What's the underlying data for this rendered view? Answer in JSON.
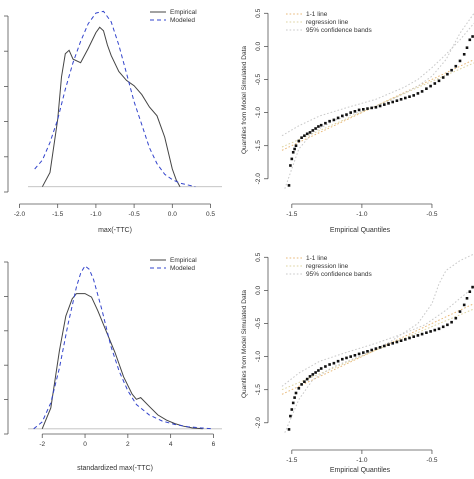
{
  "chart_data": [
    {
      "type": "line",
      "panel": "top-left",
      "xlabel": "max(-TTC)",
      "ylabel": "",
      "xlim": [
        -2.15,
        0.65
      ],
      "ylim": [
        -0.03,
        1.02
      ],
      "x_ticks": [
        -2.0,
        -1.5,
        -1.0,
        -0.5,
        0.0,
        0.5
      ],
      "x_tick_labels": [
        "-2.0",
        "-1.5",
        "-1.0",
        "-0.5",
        "0.0",
        "0.5"
      ],
      "legend": {
        "position": "top-right",
        "entries": [
          "Empirical",
          "Modeled"
        ]
      },
      "series": [
        {
          "name": "Empirical",
          "color": "#444444",
          "dash": "solid",
          "x": [
            -1.7,
            -1.6,
            -1.5,
            -1.45,
            -1.4,
            -1.35,
            -1.3,
            -1.2,
            -1.1,
            -1.0,
            -0.95,
            -0.9,
            -0.85,
            -0.8,
            -0.7,
            -0.6,
            -0.5,
            -0.4,
            -0.3,
            -0.2,
            -0.1,
            0.0,
            0.05,
            0.1
          ],
          "y": [
            0.0,
            0.08,
            0.38,
            0.62,
            0.75,
            0.77,
            0.72,
            0.7,
            0.78,
            0.87,
            0.9,
            0.88,
            0.8,
            0.74,
            0.65,
            0.6,
            0.57,
            0.52,
            0.45,
            0.4,
            0.28,
            0.1,
            0.04,
            0.0
          ]
        },
        {
          "name": "Modeled",
          "color": "#3344cc",
          "dash": "dashed",
          "x": [
            -1.8,
            -1.7,
            -1.6,
            -1.5,
            -1.4,
            -1.3,
            -1.2,
            -1.1,
            -1.0,
            -0.9,
            -0.8,
            -0.7,
            -0.6,
            -0.5,
            -0.4,
            -0.3,
            -0.2,
            -0.1,
            0.0,
            0.1,
            0.2,
            0.3
          ],
          "y": [
            0.1,
            0.15,
            0.25,
            0.38,
            0.55,
            0.7,
            0.82,
            0.92,
            0.98,
            0.99,
            0.93,
            0.8,
            0.64,
            0.48,
            0.35,
            0.22,
            0.13,
            0.07,
            0.04,
            0.02,
            0.01,
            0.0
          ]
        }
      ]
    },
    {
      "type": "scatter",
      "panel": "top-right",
      "xlabel": "Empirical Quantiles",
      "ylabel": "Quantiles from Model Simulated Data",
      "xlim": [
        -1.57,
        -0.2
      ],
      "ylim": [
        -2.2,
        0.58
      ],
      "x_ticks": [
        -1.5,
        -1.0,
        -0.5
      ],
      "x_tick_labels": [
        "-1.5",
        "-1.0",
        "-0.5"
      ],
      "y_ticks": [
        -2.0,
        -1.5,
        -1.0,
        -0.5,
        0.0,
        0.5
      ],
      "y_tick_labels": [
        "-2.0",
        "-1.5",
        "-1.0",
        "-0.5",
        "0.0",
        "0.5"
      ],
      "legend": {
        "position": "top-left",
        "entries": [
          "1-1 line",
          "regression line",
          "95% confidence bands"
        ]
      },
      "lines": [
        {
          "name": "1-1 line",
          "color": "#e8b878",
          "dash": "dotted",
          "x": [
            -1.57,
            -0.2
          ],
          "y": [
            -1.57,
            -0.2
          ]
        },
        {
          "name": "regression line",
          "color": "#ddd3a0",
          "dash": "dotted",
          "x": [
            -1.57,
            -0.2
          ],
          "y": [
            -1.52,
            -0.25
          ]
        },
        {
          "name": "95% confidence bands",
          "color": "#c8c8c8",
          "dash": "dotted",
          "x": [
            -1.55,
            -1.45,
            -1.35,
            -1.2,
            -1.0,
            -0.8,
            -0.6,
            -0.5,
            -0.4,
            -0.3,
            -0.2
          ],
          "y": [
            -2.15,
            -1.55,
            -1.3,
            -1.12,
            -0.98,
            -0.82,
            -0.6,
            -0.45,
            -0.2,
            0.2,
            0.5
          ]
        },
        {
          "color": "#c8c8c8",
          "dash": "dotted",
          "x": [
            -1.57,
            -1.45,
            -1.3,
            -1.1,
            -0.9,
            -0.7,
            -0.6,
            -0.5,
            -0.4,
            -0.3,
            -0.2
          ],
          "y": [
            -1.35,
            -1.2,
            -1.05,
            -0.92,
            -0.8,
            -0.62,
            -0.5,
            -0.32,
            -0.12,
            0.1,
            0.35
          ]
        }
      ],
      "points": {
        "x": [
          -1.52,
          -1.51,
          -1.5,
          -1.49,
          -1.48,
          -1.47,
          -1.45,
          -1.43,
          -1.41,
          -1.39,
          -1.37,
          -1.35,
          -1.33,
          -1.31,
          -1.29,
          -1.26,
          -1.23,
          -1.2,
          -1.17,
          -1.14,
          -1.11,
          -1.08,
          -1.05,
          -1.02,
          -0.99,
          -0.96,
          -0.93,
          -0.9,
          -0.87,
          -0.84,
          -0.81,
          -0.78,
          -0.75,
          -0.72,
          -0.69,
          -0.66,
          -0.63,
          -0.6,
          -0.57,
          -0.54,
          -0.51,
          -0.48,
          -0.45,
          -0.42,
          -0.39,
          -0.36,
          -0.33,
          -0.3,
          -0.27,
          -0.25,
          -0.23,
          -0.21
        ],
        "y": [
          -2.1,
          -1.8,
          -1.7,
          -1.6,
          -1.55,
          -1.5,
          -1.43,
          -1.38,
          -1.35,
          -1.32,
          -1.3,
          -1.27,
          -1.24,
          -1.21,
          -1.19,
          -1.16,
          -1.13,
          -1.11,
          -1.08,
          -1.05,
          -1.03,
          -1.0,
          -0.98,
          -0.96,
          -0.95,
          -0.94,
          -0.93,
          -0.92,
          -0.9,
          -0.88,
          -0.86,
          -0.84,
          -0.82,
          -0.8,
          -0.78,
          -0.76,
          -0.74,
          -0.71,
          -0.68,
          -0.64,
          -0.6,
          -0.56,
          -0.52,
          -0.47,
          -0.42,
          -0.36,
          -0.3,
          -0.22,
          -0.12,
          -0.02,
          0.1,
          0.15
        ]
      }
    },
    {
      "type": "line",
      "panel": "bottom-left",
      "xlabel": "standardized max(-TTC)",
      "ylabel": "",
      "xlim": [
        -3.6,
        6.4
      ],
      "ylim": [
        -0.03,
        1.02
      ],
      "x_ticks": [
        -2,
        0,
        2,
        4,
        6
      ],
      "x_tick_labels": [
        "-2",
        "0",
        "2",
        "4",
        "6"
      ],
      "legend": {
        "position": "top-right",
        "entries": [
          "Empirical",
          "Modeled"
        ]
      },
      "series": [
        {
          "name": "Empirical",
          "color": "#444444",
          "dash": "solid",
          "x": [
            -2.0,
            -1.6,
            -1.2,
            -0.9,
            -0.6,
            -0.4,
            0.0,
            0.3,
            0.6,
            1.0,
            1.4,
            1.8,
            2.2,
            2.4,
            2.6,
            3.0,
            3.4,
            3.8,
            4.2,
            4.6,
            5.0,
            5.5
          ],
          "y": [
            0.0,
            0.12,
            0.45,
            0.65,
            0.75,
            0.78,
            0.78,
            0.76,
            0.68,
            0.56,
            0.44,
            0.3,
            0.2,
            0.17,
            0.18,
            0.13,
            0.08,
            0.05,
            0.03,
            0.015,
            0.005,
            0.0
          ]
        },
        {
          "name": "Modeled",
          "color": "#3344cc",
          "dash": "dashed",
          "x": [
            -2.4,
            -2.0,
            -1.6,
            -1.2,
            -0.8,
            -0.4,
            -0.2,
            0.0,
            0.2,
            0.4,
            0.8,
            1.2,
            1.6,
            2.0,
            2.4,
            3.0,
            3.6,
            4.2,
            4.8,
            5.4,
            6.0
          ],
          "y": [
            0.0,
            0.04,
            0.15,
            0.35,
            0.6,
            0.82,
            0.9,
            0.94,
            0.92,
            0.86,
            0.68,
            0.48,
            0.33,
            0.22,
            0.14,
            0.08,
            0.045,
            0.025,
            0.012,
            0.005,
            0.0
          ]
        }
      ]
    },
    {
      "type": "scatter",
      "panel": "bottom-right",
      "xlabel": "Empirical Quantiles",
      "ylabel": "Quantiles from Model Simulated Data",
      "xlim": [
        -1.57,
        -0.2
      ],
      "ylim": [
        -2.2,
        0.58
      ],
      "x_ticks": [
        -1.5,
        -1.0,
        -0.5
      ],
      "x_tick_labels": [
        "-1.5",
        "-1.0",
        "-0.5"
      ],
      "y_ticks": [
        -2.0,
        -1.5,
        -1.0,
        -0.5,
        0.0,
        0.5
      ],
      "y_tick_labels": [
        "-2.0",
        "-1.5",
        "-1.0",
        "-0.5",
        "0.0",
        "0.5"
      ],
      "legend": {
        "position": "top-left",
        "entries": [
          "1-1 line",
          "regression line",
          "95% confidence bands"
        ]
      },
      "lines": [
        {
          "name": "1-1 line",
          "color": "#e8b878",
          "dash": "dotted",
          "x": [
            -1.57,
            -0.2
          ],
          "y": [
            -1.57,
            -0.2
          ]
        },
        {
          "name": "regression line",
          "color": "#ddd3a0",
          "dash": "dotted",
          "x": [
            -1.57,
            -0.2
          ],
          "y": [
            -1.5,
            -0.28
          ]
        },
        {
          "name": "95% confidence bands",
          "color": "#c8c8c8",
          "dash": "dotted",
          "x": [
            -1.55,
            -1.45,
            -1.35,
            -1.2,
            -1.0,
            -0.8,
            -0.6,
            -0.5,
            -0.45,
            -0.4,
            -0.3,
            -0.2
          ],
          "y": [
            -2.15,
            -1.65,
            -1.35,
            -1.15,
            -0.98,
            -0.78,
            -0.5,
            -0.2,
            0.1,
            0.3,
            0.45,
            0.55
          ]
        },
        {
          "color": "#c8c8c8",
          "dash": "dotted",
          "x": [
            -1.57,
            -1.45,
            -1.3,
            -1.1,
            -0.9,
            -0.7,
            -0.55,
            -0.4,
            -0.3,
            -0.2
          ],
          "y": [
            -1.45,
            -1.25,
            -1.07,
            -0.93,
            -0.8,
            -0.65,
            -0.52,
            -0.3,
            -0.12,
            0.05
          ]
        }
      ],
      "points": {
        "x": [
          -1.52,
          -1.51,
          -1.5,
          -1.49,
          -1.48,
          -1.47,
          -1.45,
          -1.43,
          -1.41,
          -1.39,
          -1.37,
          -1.35,
          -1.33,
          -1.31,
          -1.29,
          -1.26,
          -1.23,
          -1.2,
          -1.17,
          -1.14,
          -1.11,
          -1.08,
          -1.05,
          -1.02,
          -0.99,
          -0.96,
          -0.93,
          -0.9,
          -0.87,
          -0.84,
          -0.81,
          -0.78,
          -0.75,
          -0.72,
          -0.69,
          -0.66,
          -0.63,
          -0.6,
          -0.57,
          -0.54,
          -0.51,
          -0.48,
          -0.45,
          -0.42,
          -0.39,
          -0.36,
          -0.33,
          -0.3,
          -0.27,
          -0.25,
          -0.23,
          -0.21
        ],
        "y": [
          -2.1,
          -1.9,
          -1.8,
          -1.7,
          -1.62,
          -1.55,
          -1.48,
          -1.42,
          -1.38,
          -1.34,
          -1.3,
          -1.27,
          -1.24,
          -1.21,
          -1.18,
          -1.15,
          -1.12,
          -1.1,
          -1.07,
          -1.04,
          -1.02,
          -1.0,
          -0.98,
          -0.96,
          -0.94,
          -0.92,
          -0.9,
          -0.88,
          -0.86,
          -0.84,
          -0.82,
          -0.8,
          -0.78,
          -0.76,
          -0.74,
          -0.72,
          -0.7,
          -0.68,
          -0.66,
          -0.64,
          -0.62,
          -0.6,
          -0.58,
          -0.55,
          -0.52,
          -0.48,
          -0.42,
          -0.32,
          -0.22,
          -0.12,
          -0.02,
          0.05
        ]
      }
    }
  ]
}
